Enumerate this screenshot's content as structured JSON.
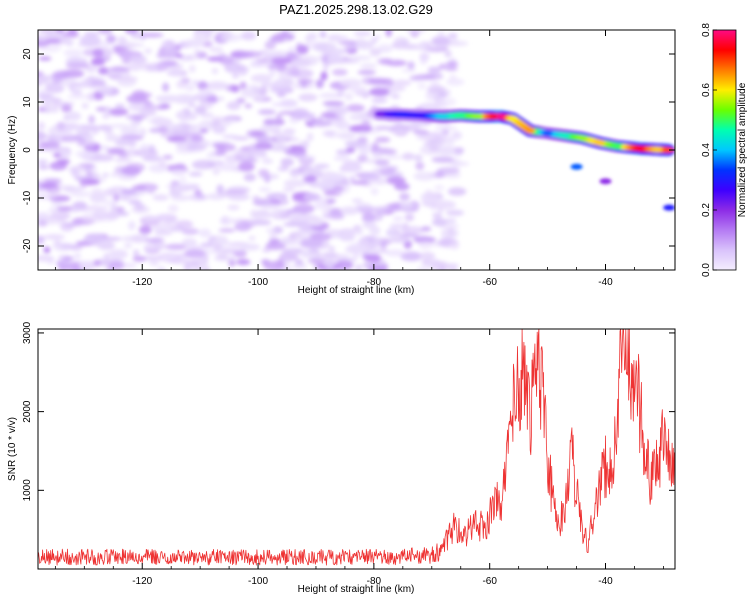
{
  "figure_title": "PAZ1.2025.298.13.02.G29",
  "chart_data": [
    {
      "type": "heatmap",
      "title": "PAZ1.2025.298.13.02.G29",
      "xlabel": "Height of straight line (km)",
      "ylabel": "Frequency (Hz)",
      "xlim": [
        -138,
        -28
      ],
      "ylim": [
        -25,
        25
      ],
      "xticks": [
        "-120",
        "-100",
        "-80",
        "-60",
        "-40"
      ],
      "xtick_values": [
        -120,
        -100,
        -80,
        -60,
        -40
      ],
      "yticks": [
        "-20",
        "-10",
        "0",
        "10",
        "20"
      ],
      "ytick_values": [
        -20,
        -10,
        0,
        10,
        20
      ],
      "colorbar": {
        "label": "Normalized spectral amplitude",
        "range": [
          0,
          0.8
        ],
        "ticks": [
          "0.0",
          "0.2",
          "0.4",
          "0.6",
          "0.8"
        ],
        "tick_values": [
          0,
          0.2,
          0.4,
          0.6,
          0.8
        ],
        "stops": [
          "#f4eefe",
          "#d9c2fb",
          "#b47af3",
          "#8c2be6",
          "#3d00ff",
          "#0033ff",
          "#00c8ff",
          "#00ffb0",
          "#6aff00",
          "#ffee00",
          "#ff7a00",
          "#ff0000",
          "#ff0a84"
        ]
      },
      "noise_region": {
        "x_range": [
          -138,
          -65
        ],
        "y_range": [
          -25,
          25
        ],
        "amplitude_range": [
          0.02,
          0.12
        ]
      },
      "signal_ridge": [
        {
          "x": -79,
          "y": 7.5,
          "amp": 0.22
        },
        {
          "x": -75,
          "y": 7.4,
          "amp": 0.3
        },
        {
          "x": -72,
          "y": 7.2,
          "amp": 0.28
        },
        {
          "x": -68,
          "y": 7.0,
          "amp": 0.42
        },
        {
          "x": -65,
          "y": 7.2,
          "amp": 0.48
        },
        {
          "x": -62,
          "y": 7.0,
          "amp": 0.55
        },
        {
          "x": -58,
          "y": 7.0,
          "amp": 0.8
        },
        {
          "x": -56,
          "y": 6.5,
          "amp": 0.6
        },
        {
          "x": -53,
          "y": 4.0,
          "amp": 0.65
        },
        {
          "x": -50,
          "y": 3.5,
          "amp": 0.35
        },
        {
          "x": -47,
          "y": 3.0,
          "amp": 0.45
        },
        {
          "x": -44,
          "y": 2.5,
          "amp": 0.55
        },
        {
          "x": -41,
          "y": 1.5,
          "amp": 0.62
        },
        {
          "x": -38,
          "y": 0.8,
          "amp": 0.5
        },
        {
          "x": -34,
          "y": 0.3,
          "amp": 0.75
        },
        {
          "x": -31,
          "y": 0.1,
          "amp": 0.62
        },
        {
          "x": -29,
          "y": 0.0,
          "amp": 0.7
        }
      ],
      "secondary_features": [
        {
          "x": -45,
          "y": -3.5,
          "amp": 0.35
        },
        {
          "x": -40,
          "y": -6.5,
          "amp": 0.2
        },
        {
          "x": -29,
          "y": -12.0,
          "amp": 0.3
        }
      ]
    },
    {
      "type": "line",
      "title": "",
      "xlabel": "Height of straight line (km)",
      "ylabel": "SNR (10 * v/v)",
      "xlim": [
        -138,
        -28
      ],
      "ylim": [
        0,
        3050
      ],
      "xticks": [
        "-120",
        "-100",
        "-80",
        "-60",
        "-40"
      ],
      "xtick_values": [
        -120,
        -100,
        -80,
        -60,
        -40
      ],
      "yticks": [
        "1000",
        "2000",
        "3000"
      ],
      "ytick_values": [
        1000,
        2000,
        3000
      ],
      "series": [
        {
          "name": "SNR",
          "color": "#ee3333",
          "x": [
            -138,
            -135,
            -130,
            -125,
            -120,
            -115,
            -110,
            -105,
            -100,
            -95,
            -90,
            -85,
            -80,
            -75,
            -72,
            -70,
            -68,
            -67,
            -66,
            -65,
            -64,
            -63,
            -62,
            -61,
            -60,
            -59,
            -58,
            -57,
            -56,
            -55,
            -54,
            -53,
            -52,
            -51,
            -50,
            -49,
            -48,
            -47,
            -46,
            -45,
            -44,
            -43,
            -42,
            -41,
            -40,
            -39,
            -38,
            -37,
            -36,
            -35,
            -34,
            -33,
            -32,
            -31,
            -30,
            -29,
            -28
          ],
          "y": [
            150,
            150,
            150,
            150,
            150,
            150,
            150,
            150,
            150,
            150,
            150,
            150,
            150,
            160,
            170,
            180,
            250,
            450,
            550,
            500,
            420,
            550,
            600,
            520,
            700,
            850,
            750,
            1350,
            2000,
            2400,
            2600,
            1900,
            2600,
            2200,
            1400,
            800,
            600,
            700,
            1500,
            1000,
            450,
            300,
            700,
            1100,
            1300,
            1200,
            1900,
            2800,
            3000,
            2300,
            2100,
            1500,
            1100,
            1300,
            1600,
            1500,
            1450
          ]
        }
      ]
    }
  ]
}
